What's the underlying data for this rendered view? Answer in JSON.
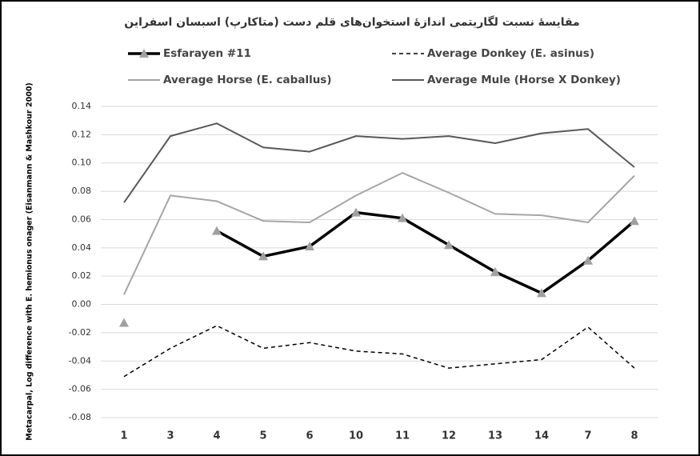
{
  "chart_data": {
    "type": "line",
    "title": "مقایسهٔ نسبت لگاریتمی اندازهٔ استخوان‌های قلم دست (متاکارپ) اسبسان اسفراین",
    "y_label": "Metacarpal, Log difference with E. hemionus onager (Eisanmann & Mashkour 2000)",
    "categories": [
      "1",
      "3",
      "4",
      "5",
      "6",
      "10",
      "11",
      "12",
      "13",
      "14",
      "7",
      "8"
    ],
    "ylim": [
      -0.08,
      0.14
    ],
    "yticks": [
      -0.08,
      -0.06,
      -0.04,
      -0.02,
      {
        "value": 0,
        "label": "0.00"
      },
      0.02,
      0.04,
      0.06,
      0.08,
      {
        "value": 0.1,
        "label": "0.10"
      },
      0.12,
      0.14
    ],
    "grid": true,
    "series": [
      {
        "name": "Esfarayen #11",
        "color": "#000000",
        "width": 3.5,
        "dash": "none",
        "marker": "triangle",
        "marker_color": "#a0a0a0",
        "values": [
          -0.013,
          null,
          0.052,
          0.034,
          0.041,
          0.065,
          0.061,
          0.042,
          0.023,
          0.008,
          0.031,
          0.059
        ]
      },
      {
        "name": "Average Donkey  (E. asinus)",
        "color": "#000000",
        "width": 1.5,
        "dash": "5 4",
        "values": [
          -0.051,
          -0.031,
          -0.015,
          -0.031,
          -0.027,
          -0.033,
          -0.035,
          -0.045,
          -0.042,
          -0.039,
          -0.016,
          -0.045
        ]
      },
      {
        "name": "Average Horse (E. caballus)",
        "color": "#a6a6a6",
        "width": 2,
        "dash": "none",
        "values": [
          0.007,
          0.077,
          0.073,
          0.059,
          0.058,
          0.077,
          0.093,
          0.079,
          0.064,
          0.063,
          0.058,
          0.091
        ]
      },
      {
        "name": "Average Mule (Horse X Donkey)",
        "color": "#595959",
        "width": 2,
        "dash": "none",
        "values": [
          0.072,
          0.119,
          0.128,
          0.111,
          0.108,
          0.119,
          0.117,
          0.119,
          0.114,
          0.121,
          0.124,
          0.097
        ]
      }
    ]
  }
}
